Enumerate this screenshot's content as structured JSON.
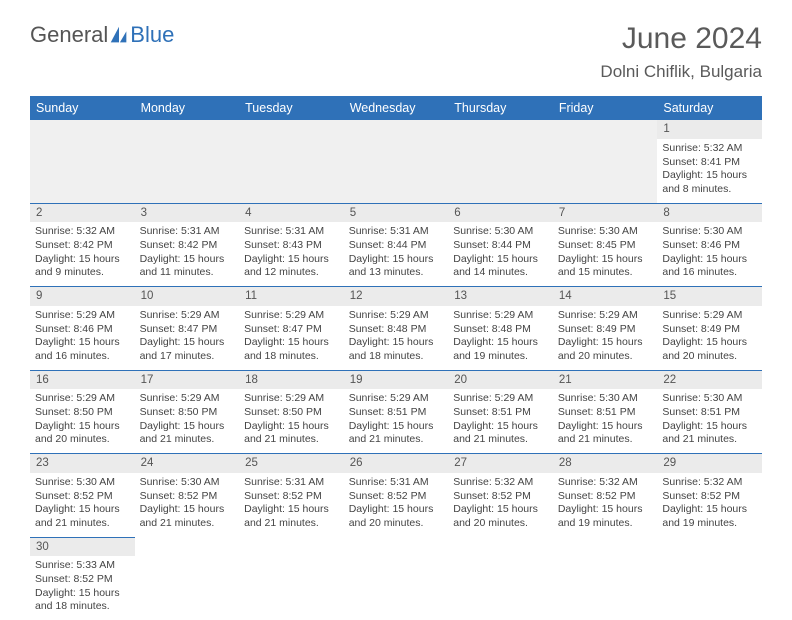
{
  "logo": {
    "part1": "General",
    "part2": "Blue"
  },
  "title": "June 2024",
  "subtitle": "Dolni Chiflik, Bulgaria",
  "colors": {
    "header_bg": "#2f71b8",
    "header_text": "#ffffff",
    "daynum_bg": "#ebebeb",
    "border": "#2f71b8",
    "blank_bg": "#f0f0f0",
    "text": "#444444",
    "title_text": "#5a5a5a"
  },
  "weekdays": [
    "Sunday",
    "Monday",
    "Tuesday",
    "Wednesday",
    "Thursday",
    "Friday",
    "Saturday"
  ],
  "weeks": [
    [
      null,
      null,
      null,
      null,
      null,
      null,
      {
        "n": 1,
        "sunrise": "Sunrise: 5:32 AM",
        "sunset": "Sunset: 8:41 PM",
        "daylight": "Daylight: 15 hours and 8 minutes."
      }
    ],
    [
      {
        "n": 2,
        "sunrise": "Sunrise: 5:32 AM",
        "sunset": "Sunset: 8:42 PM",
        "daylight": "Daylight: 15 hours and 9 minutes."
      },
      {
        "n": 3,
        "sunrise": "Sunrise: 5:31 AM",
        "sunset": "Sunset: 8:42 PM",
        "daylight": "Daylight: 15 hours and 11 minutes."
      },
      {
        "n": 4,
        "sunrise": "Sunrise: 5:31 AM",
        "sunset": "Sunset: 8:43 PM",
        "daylight": "Daylight: 15 hours and 12 minutes."
      },
      {
        "n": 5,
        "sunrise": "Sunrise: 5:31 AM",
        "sunset": "Sunset: 8:44 PM",
        "daylight": "Daylight: 15 hours and 13 minutes."
      },
      {
        "n": 6,
        "sunrise": "Sunrise: 5:30 AM",
        "sunset": "Sunset: 8:44 PM",
        "daylight": "Daylight: 15 hours and 14 minutes."
      },
      {
        "n": 7,
        "sunrise": "Sunrise: 5:30 AM",
        "sunset": "Sunset: 8:45 PM",
        "daylight": "Daylight: 15 hours and 15 minutes."
      },
      {
        "n": 8,
        "sunrise": "Sunrise: 5:30 AM",
        "sunset": "Sunset: 8:46 PM",
        "daylight": "Daylight: 15 hours and 16 minutes."
      }
    ],
    [
      {
        "n": 9,
        "sunrise": "Sunrise: 5:29 AM",
        "sunset": "Sunset: 8:46 PM",
        "daylight": "Daylight: 15 hours and 16 minutes."
      },
      {
        "n": 10,
        "sunrise": "Sunrise: 5:29 AM",
        "sunset": "Sunset: 8:47 PM",
        "daylight": "Daylight: 15 hours and 17 minutes."
      },
      {
        "n": 11,
        "sunrise": "Sunrise: 5:29 AM",
        "sunset": "Sunset: 8:47 PM",
        "daylight": "Daylight: 15 hours and 18 minutes."
      },
      {
        "n": 12,
        "sunrise": "Sunrise: 5:29 AM",
        "sunset": "Sunset: 8:48 PM",
        "daylight": "Daylight: 15 hours and 18 minutes."
      },
      {
        "n": 13,
        "sunrise": "Sunrise: 5:29 AM",
        "sunset": "Sunset: 8:48 PM",
        "daylight": "Daylight: 15 hours and 19 minutes."
      },
      {
        "n": 14,
        "sunrise": "Sunrise: 5:29 AM",
        "sunset": "Sunset: 8:49 PM",
        "daylight": "Daylight: 15 hours and 20 minutes."
      },
      {
        "n": 15,
        "sunrise": "Sunrise: 5:29 AM",
        "sunset": "Sunset: 8:49 PM",
        "daylight": "Daylight: 15 hours and 20 minutes."
      }
    ],
    [
      {
        "n": 16,
        "sunrise": "Sunrise: 5:29 AM",
        "sunset": "Sunset: 8:50 PM",
        "daylight": "Daylight: 15 hours and 20 minutes."
      },
      {
        "n": 17,
        "sunrise": "Sunrise: 5:29 AM",
        "sunset": "Sunset: 8:50 PM",
        "daylight": "Daylight: 15 hours and 21 minutes."
      },
      {
        "n": 18,
        "sunrise": "Sunrise: 5:29 AM",
        "sunset": "Sunset: 8:50 PM",
        "daylight": "Daylight: 15 hours and 21 minutes."
      },
      {
        "n": 19,
        "sunrise": "Sunrise: 5:29 AM",
        "sunset": "Sunset: 8:51 PM",
        "daylight": "Daylight: 15 hours and 21 minutes."
      },
      {
        "n": 20,
        "sunrise": "Sunrise: 5:29 AM",
        "sunset": "Sunset: 8:51 PM",
        "daylight": "Daylight: 15 hours and 21 minutes."
      },
      {
        "n": 21,
        "sunrise": "Sunrise: 5:30 AM",
        "sunset": "Sunset: 8:51 PM",
        "daylight": "Daylight: 15 hours and 21 minutes."
      },
      {
        "n": 22,
        "sunrise": "Sunrise: 5:30 AM",
        "sunset": "Sunset: 8:51 PM",
        "daylight": "Daylight: 15 hours and 21 minutes."
      }
    ],
    [
      {
        "n": 23,
        "sunrise": "Sunrise: 5:30 AM",
        "sunset": "Sunset: 8:52 PM",
        "daylight": "Daylight: 15 hours and 21 minutes."
      },
      {
        "n": 24,
        "sunrise": "Sunrise: 5:30 AM",
        "sunset": "Sunset: 8:52 PM",
        "daylight": "Daylight: 15 hours and 21 minutes."
      },
      {
        "n": 25,
        "sunrise": "Sunrise: 5:31 AM",
        "sunset": "Sunset: 8:52 PM",
        "daylight": "Daylight: 15 hours and 21 minutes."
      },
      {
        "n": 26,
        "sunrise": "Sunrise: 5:31 AM",
        "sunset": "Sunset: 8:52 PM",
        "daylight": "Daylight: 15 hours and 20 minutes."
      },
      {
        "n": 27,
        "sunrise": "Sunrise: 5:32 AM",
        "sunset": "Sunset: 8:52 PM",
        "daylight": "Daylight: 15 hours and 20 minutes."
      },
      {
        "n": 28,
        "sunrise": "Sunrise: 5:32 AM",
        "sunset": "Sunset: 8:52 PM",
        "daylight": "Daylight: 15 hours and 19 minutes."
      },
      {
        "n": 29,
        "sunrise": "Sunrise: 5:32 AM",
        "sunset": "Sunset: 8:52 PM",
        "daylight": "Daylight: 15 hours and 19 minutes."
      }
    ],
    [
      {
        "n": 30,
        "sunrise": "Sunrise: 5:33 AM",
        "sunset": "Sunset: 8:52 PM",
        "daylight": "Daylight: 15 hours and 18 minutes."
      },
      null,
      null,
      null,
      null,
      null,
      null
    ]
  ]
}
